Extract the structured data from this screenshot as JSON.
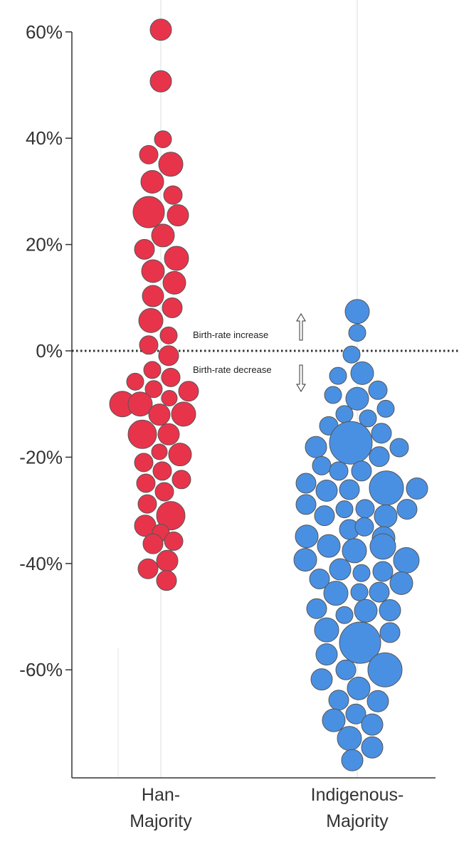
{
  "chart_data": {
    "type": "scatter",
    "subtype": "beeswarm",
    "ylim": [
      -80,
      60
    ],
    "yticks": [
      {
        "value": 60,
        "label": "60%"
      },
      {
        "value": 40,
        "label": "40%"
      },
      {
        "value": 20,
        "label": "20%"
      },
      {
        "value": 0,
        "label": "0%"
      },
      {
        "value": -20,
        "label": "-20%"
      },
      {
        "value": -40,
        "label": "-40%"
      },
      {
        "value": -60,
        "label": "-60%"
      }
    ],
    "categories": [
      {
        "name_line1": "Han-",
        "name_line2": "Majority",
        "color": "#e8344b"
      },
      {
        "name_line1": "Indigenous-",
        "name_line2": "Majority",
        "color": "#4a90e2"
      }
    ],
    "reference_line": {
      "value": 0,
      "style": "dotted"
    },
    "annotations": {
      "increase": "Birth-rate increase",
      "decrease": "Birth-rate decrease"
    },
    "series": [
      {
        "category": "Han-Majority",
        "color": "#e8344b",
        "points": [
          {
            "offset": 0,
            "y": 60.4,
            "r": 15
          },
          {
            "offset": 0,
            "y": 50.7,
            "r": 15
          },
          {
            "offset": 3,
            "y": 39.8,
            "r": 12
          },
          {
            "offset": -17,
            "y": 36.9,
            "r": 13
          },
          {
            "offset": 14,
            "y": 35.1,
            "r": 17
          },
          {
            "offset": -12,
            "y": 31.8,
            "r": 16
          },
          {
            "offset": 17,
            "y": 29.3,
            "r": 13
          },
          {
            "offset": -17,
            "y": 26.1,
            "r": 22
          },
          {
            "offset": 24,
            "y": 25.5,
            "r": 15
          },
          {
            "offset": 3,
            "y": 21.7,
            "r": 16
          },
          {
            "offset": -23,
            "y": 19.1,
            "r": 14
          },
          {
            "offset": 22,
            "y": 17.4,
            "r": 17
          },
          {
            "offset": -11,
            "y": 15.0,
            "r": 16
          },
          {
            "offset": 19,
            "y": 12.8,
            "r": 16
          },
          {
            "offset": -11,
            "y": 10.3,
            "r": 15
          },
          {
            "offset": 16,
            "y": 8.1,
            "r": 14
          },
          {
            "offset": -14,
            "y": 5.7,
            "r": 17
          },
          {
            "offset": 11,
            "y": 2.9,
            "r": 12
          },
          {
            "offset": -17,
            "y": 1.1,
            "r": 13
          },
          {
            "offset": 11,
            "y": -0.9,
            "r": 14
          },
          {
            "offset": -12,
            "y": -3.6,
            "r": 12
          },
          {
            "offset": 14,
            "y": -5.0,
            "r": 13
          },
          {
            "offset": -36,
            "y": -5.8,
            "r": 12
          },
          {
            "offset": -10,
            "y": -7.2,
            "r": 12
          },
          {
            "offset": 39,
            "y": -7.6,
            "r": 14
          },
          {
            "offset": 12,
            "y": -8.9,
            "r": 11
          },
          {
            "offset": -54,
            "y": -10.0,
            "r": 18
          },
          {
            "offset": -29,
            "y": -10.0,
            "r": 17
          },
          {
            "offset": 32,
            "y": -11.9,
            "r": 17
          },
          {
            "offset": -2,
            "y": -12.0,
            "r": 15
          },
          {
            "offset": -26,
            "y": -15.7,
            "r": 20
          },
          {
            "offset": 11,
            "y": -15.7,
            "r": 15
          },
          {
            "offset": 27,
            "y": -19.5,
            "r": 16
          },
          {
            "offset": -2,
            "y": -19.0,
            "r": 11
          },
          {
            "offset": -24,
            "y": -21.0,
            "r": 13
          },
          {
            "offset": 2,
            "y": -22.6,
            "r": 13
          },
          {
            "offset": -21,
            "y": -24.9,
            "r": 13
          },
          {
            "offset": 29,
            "y": -24.2,
            "r": 13
          },
          {
            "offset": 5,
            "y": -26.5,
            "r": 13
          },
          {
            "offset": -19,
            "y": -28.8,
            "r": 13
          },
          {
            "offset": 14,
            "y": -31.0,
            "r": 20
          },
          {
            "offset": -22,
            "y": -32.9,
            "r": 15
          },
          {
            "offset": 0,
            "y": -34.2,
            "r": 12
          },
          {
            "offset": 18,
            "y": -35.8,
            "r": 13
          },
          {
            "offset": -11,
            "y": -36.3,
            "r": 14
          },
          {
            "offset": 9,
            "y": -39.5,
            "r": 15
          },
          {
            "offset": -18,
            "y": -41.0,
            "r": 14
          },
          {
            "offset": 8,
            "y": -43.2,
            "r": 14
          }
        ]
      },
      {
        "category": "Indigenous-Majority",
        "color": "#4a90e2",
        "points": [
          {
            "offset": 0,
            "y": 7.4,
            "r": 17
          },
          {
            "offset": 0,
            "y": 3.4,
            "r": 12
          },
          {
            "offset": -8,
            "y": -0.7,
            "r": 12
          },
          {
            "offset": -27,
            "y": -4.7,
            "r": 12
          },
          {
            "offset": 7,
            "y": -4.2,
            "r": 16
          },
          {
            "offset": 29,
            "y": -7.4,
            "r": 13
          },
          {
            "offset": -34,
            "y": -8.3,
            "r": 12
          },
          {
            "offset": 0,
            "y": -9.0,
            "r": 16
          },
          {
            "offset": 40,
            "y": -10.9,
            "r": 12
          },
          {
            "offset": -18,
            "y": -11.9,
            "r": 12
          },
          {
            "offset": 15,
            "y": -12.7,
            "r": 12
          },
          {
            "offset": -40,
            "y": -14.1,
            "r": 13
          },
          {
            "offset": -9,
            "y": -17.3,
            "r": 30
          },
          {
            "offset": 34,
            "y": -15.5,
            "r": 14
          },
          {
            "offset": -58,
            "y": -18.1,
            "r": 15
          },
          {
            "offset": 59,
            "y": -18.2,
            "r": 13
          },
          {
            "offset": 31,
            "y": -19.9,
            "r": 14
          },
          {
            "offset": -50,
            "y": -21.6,
            "r": 13
          },
          {
            "offset": -26,
            "y": -22.6,
            "r": 13
          },
          {
            "offset": 6,
            "y": -22.6,
            "r": 14
          },
          {
            "offset": -72,
            "y": -24.9,
            "r": 14
          },
          {
            "offset": -43,
            "y": -26.3,
            "r": 15
          },
          {
            "offset": -11,
            "y": -26.1,
            "r": 14
          },
          {
            "offset": 41,
            "y": -25.8,
            "r": 24
          },
          {
            "offset": 84,
            "y": -25.9,
            "r": 15
          },
          {
            "offset": -72,
            "y": -28.9,
            "r": 14
          },
          {
            "offset": -18,
            "y": -29.8,
            "r": 12
          },
          {
            "offset": 11,
            "y": -29.7,
            "r": 13
          },
          {
            "offset": -46,
            "y": -31.0,
            "r": 14
          },
          {
            "offset": 40,
            "y": -31.1,
            "r": 16
          },
          {
            "offset": 70,
            "y": -29.8,
            "r": 14
          },
          {
            "offset": -11,
            "y": -33.6,
            "r": 14
          },
          {
            "offset": 10,
            "y": -33.1,
            "r": 13
          },
          {
            "offset": -71,
            "y": -34.9,
            "r": 16
          },
          {
            "offset": 37,
            "y": -35.2,
            "r": 16
          },
          {
            "offset": -40,
            "y": -36.7,
            "r": 16
          },
          {
            "offset": -4,
            "y": -37.6,
            "r": 17
          },
          {
            "offset": 36,
            "y": -36.8,
            "r": 18
          },
          {
            "offset": -73,
            "y": -39.3,
            "r": 16
          },
          {
            "offset": 69,
            "y": -39.4,
            "r": 18
          },
          {
            "offset": -24,
            "y": -41.1,
            "r": 15
          },
          {
            "offset": 6,
            "y": -41.8,
            "r": 12
          },
          {
            "offset": 36,
            "y": -41.5,
            "r": 14
          },
          {
            "offset": -53,
            "y": -42.9,
            "r": 14
          },
          {
            "offset": 62,
            "y": -43.7,
            "r": 16
          },
          {
            "offset": -30,
            "y": -45.6,
            "r": 17
          },
          {
            "offset": 3,
            "y": -45.4,
            "r": 12
          },
          {
            "offset": 31,
            "y": -45.4,
            "r": 14
          },
          {
            "offset": -57,
            "y": -48.5,
            "r": 14
          },
          {
            "offset": 46,
            "y": -48.8,
            "r": 15
          },
          {
            "offset": -18,
            "y": -49.7,
            "r": 12
          },
          {
            "offset": 12,
            "y": -48.9,
            "r": 16
          },
          {
            "offset": -43,
            "y": -52.5,
            "r": 17
          },
          {
            "offset": 46,
            "y": -53.0,
            "r": 14
          },
          {
            "offset": 4,
            "y": -54.9,
            "r": 29
          },
          {
            "offset": -43,
            "y": -57.1,
            "r": 15
          },
          {
            "offset": -16,
            "y": -60.0,
            "r": 14
          },
          {
            "offset": 39,
            "y": -60.0,
            "r": 24
          },
          {
            "offset": -50,
            "y": -61.8,
            "r": 15
          },
          {
            "offset": 2,
            "y": -63.5,
            "r": 16
          },
          {
            "offset": -26,
            "y": -65.7,
            "r": 14
          },
          {
            "offset": 29,
            "y": -65.9,
            "r": 15
          },
          {
            "offset": -33,
            "y": -69.5,
            "r": 16
          },
          {
            "offset": -2,
            "y": -68.3,
            "r": 14
          },
          {
            "offset": 21,
            "y": -70.3,
            "r": 15
          },
          {
            "offset": -11,
            "y": -72.9,
            "r": 17
          },
          {
            "offset": 21,
            "y": -74.6,
            "r": 15
          },
          {
            "offset": -7,
            "y": -77.0,
            "r": 15
          }
        ]
      }
    ]
  }
}
